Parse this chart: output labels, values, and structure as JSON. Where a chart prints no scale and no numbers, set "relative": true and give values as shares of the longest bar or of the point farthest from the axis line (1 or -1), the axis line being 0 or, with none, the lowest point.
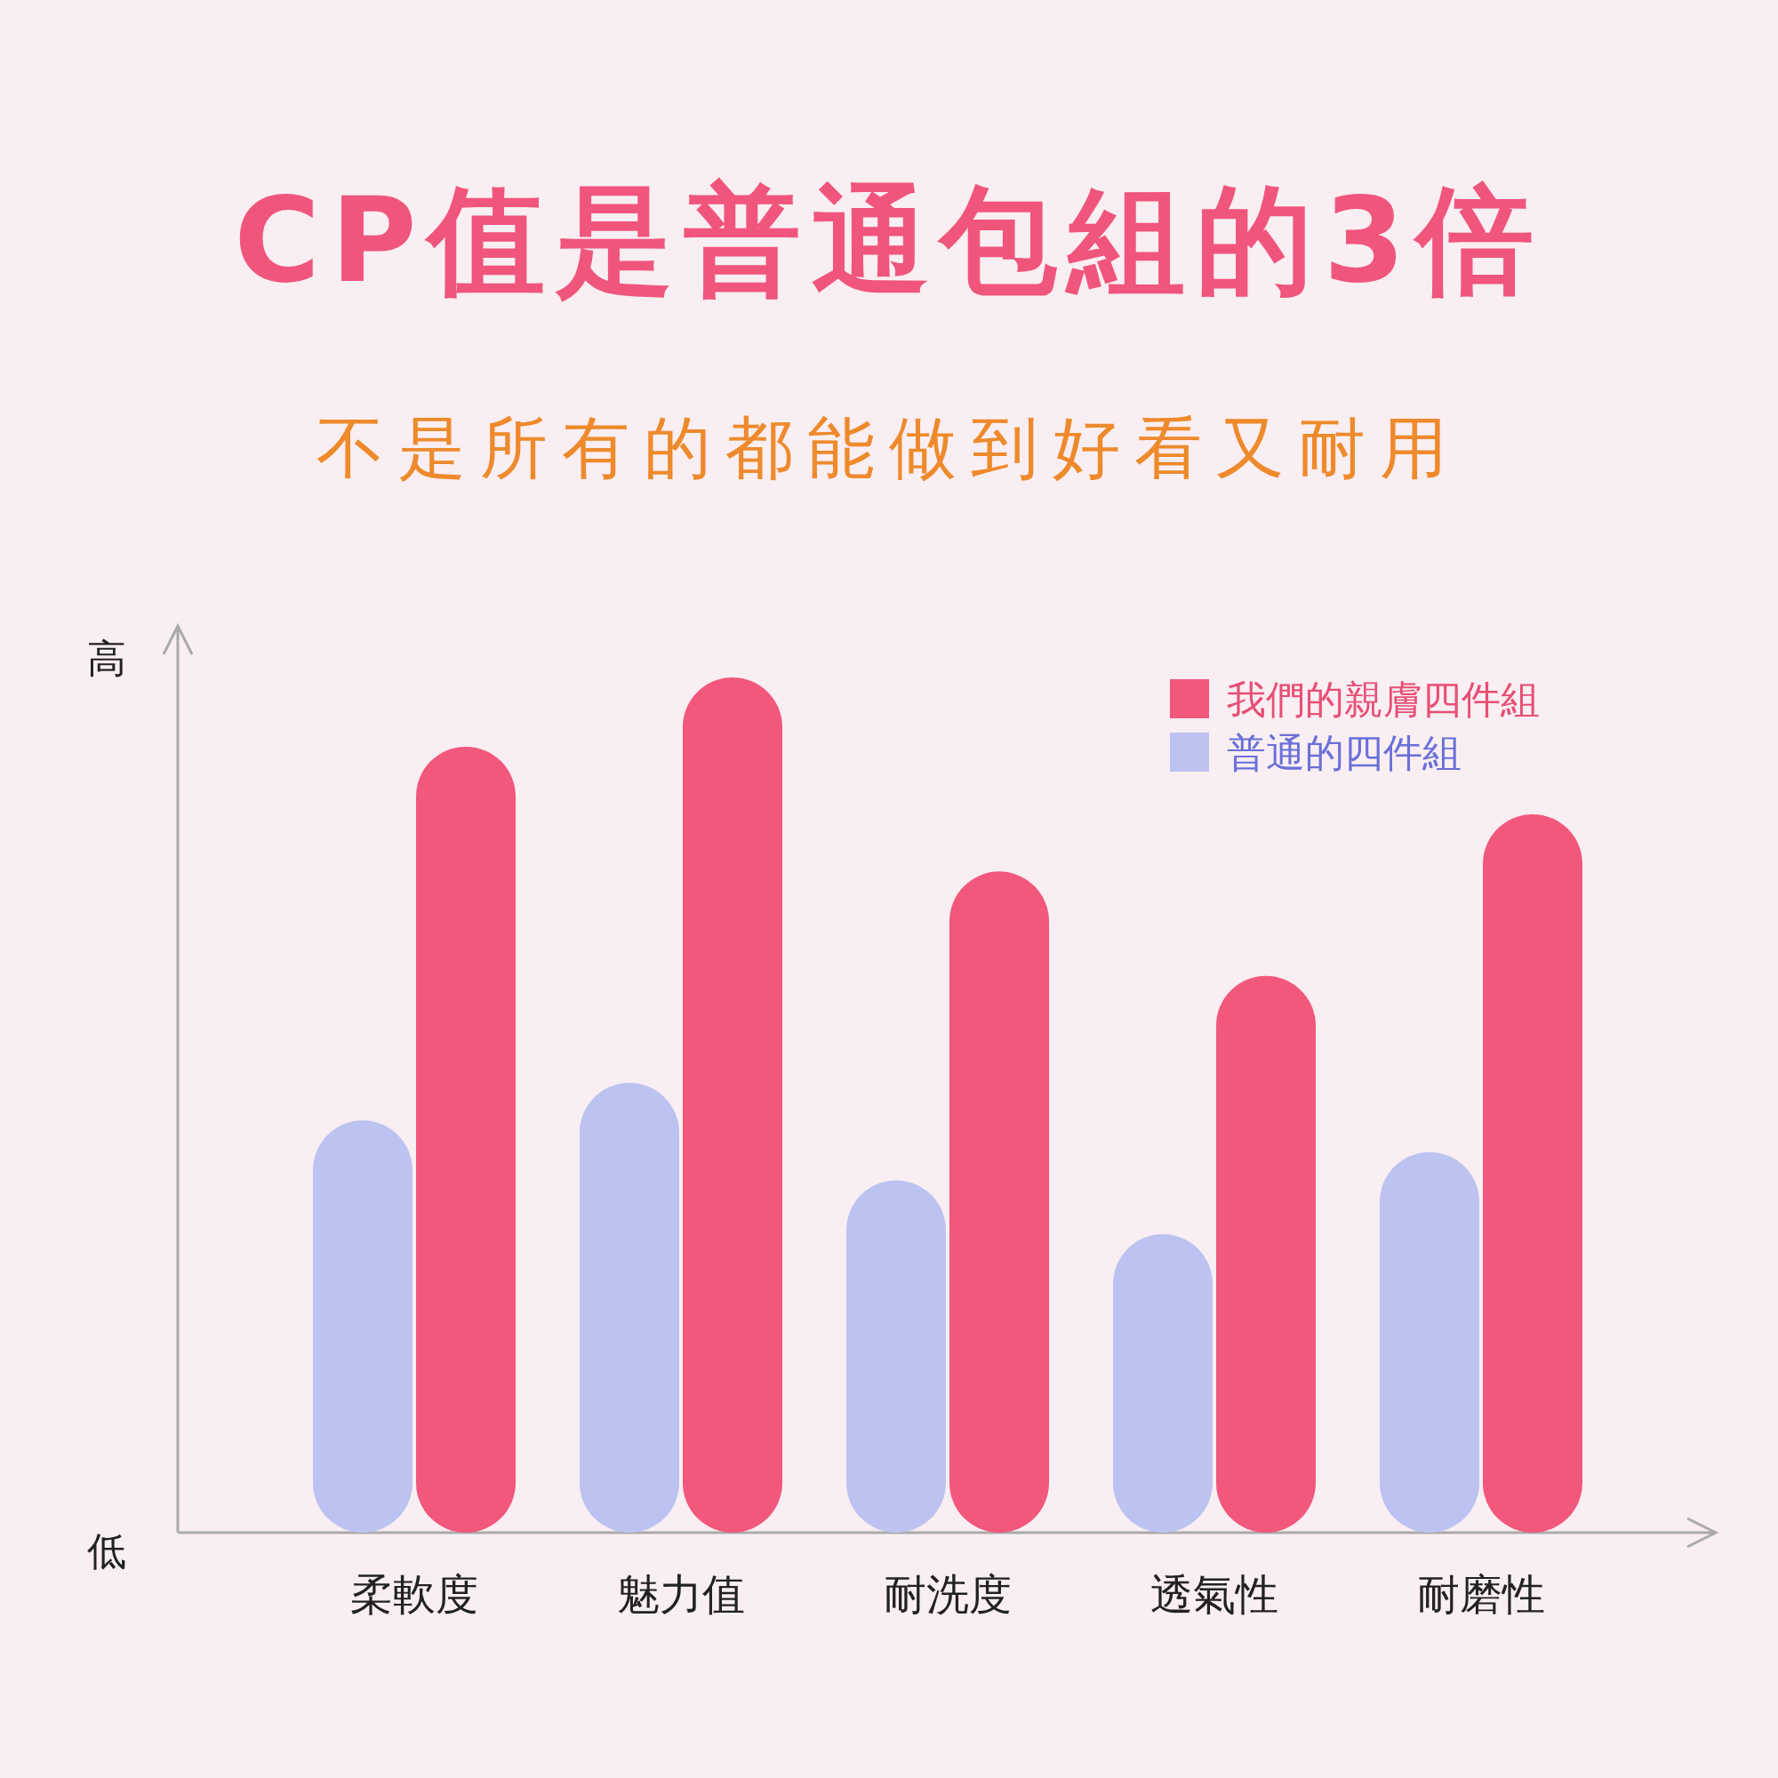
{
  "chart_data": {
    "type": "bar",
    "title": "CP值是普通包組的3倍",
    "subtitle": "不是所有的都能做到好看又耐用",
    "relative": true,
    "legend": "top right",
    "categories": [
      "柔軟度",
      "魅力值",
      "耐洗度",
      "透氣性",
      "耐磨性"
    ],
    "annotations": [
      "高",
      "低"
    ],
    "series": [
      {
        "name": "普通的四件組",
        "color": "#bcc3f0",
        "values": [
          0.482,
          0.526,
          0.412,
          0.349,
          0.445
        ]
      },
      {
        "name": "我們的親膚四件組",
        "color": "#f2577c",
        "values": [
          0.919,
          1,
          0.773,
          0.651,
          0.84
        ]
      }
    ]
  }
}
